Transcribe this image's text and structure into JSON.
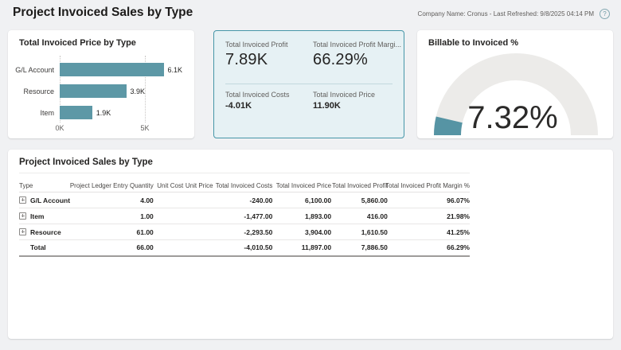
{
  "page": {
    "title": "Project Invoiced Sales by Type",
    "meta": "Company Name: Cronus - Last Refreshed: 9/8/2025 04:14 PM",
    "help_icon": "?"
  },
  "colors": {
    "accent_teal": "#5d98a6",
    "kpi_card_bg": "#e6f1f4",
    "kpi_card_border": "#4696a8",
    "gauge_track": "#ecebe9",
    "page_bg": "#f0f1f3"
  },
  "chart_data": [
    {
      "type": "bar",
      "title": "Total Invoiced Price by Type",
      "orientation": "horizontal",
      "categories": [
        "G/L Account",
        "Resource",
        "Item"
      ],
      "values": [
        6100,
        3900,
        1900
      ],
      "value_labels": [
        "6.1K",
        "3.9K",
        "1.9K"
      ],
      "xticks": [
        "0K",
        "5K"
      ],
      "axis_max": 5000,
      "xlabel": "",
      "ylabel": "",
      "grid": "dotted-vertical",
      "legend": "none"
    },
    {
      "type": "gauge",
      "title": "Billable to Invoiced %",
      "value": 7.32,
      "display": "7.32%",
      "range": [
        0,
        100
      ]
    }
  ],
  "kpi_card": {
    "primary": [
      {
        "label": "Total Invoiced Profit",
        "value": "7.89K"
      },
      {
        "label": "Total Invoiced Profit Margi...",
        "value": "66.29%"
      }
    ],
    "secondary": [
      {
        "label": "Total Invoiced Costs",
        "value": "-4.01K"
      },
      {
        "label": "Total Invoiced Price",
        "value": "11.90K"
      }
    ]
  },
  "table": {
    "title": "Project Invoiced Sales by Type",
    "columns": [
      "Type",
      "Project Ledger Entry Quantity",
      "Unit Cost",
      "Unit Price",
      "Total Invoiced Costs",
      "Total Invoiced Price",
      "Total Invoiced Profit",
      "Total Invoiced Profit Margin %"
    ],
    "rows": [
      {
        "type": "G/L Account",
        "expandable": true,
        "total": false,
        "cells": [
          "4.00",
          "",
          "",
          "-240.00",
          "6,100.00",
          "5,860.00",
          "96.07%"
        ]
      },
      {
        "type": "Item",
        "expandable": true,
        "total": false,
        "cells": [
          "1.00",
          "",
          "",
          "-1,477.00",
          "1,893.00",
          "416.00",
          "21.98%"
        ]
      },
      {
        "type": "Resource",
        "expandable": true,
        "total": false,
        "cells": [
          "61.00",
          "",
          "",
          "-2,293.50",
          "3,904.00",
          "1,610.50",
          "41.25%"
        ]
      },
      {
        "type": "Total",
        "expandable": false,
        "total": true,
        "cells": [
          "66.00",
          "",
          "",
          "-4,010.50",
          "11,897.00",
          "7,886.50",
          "66.29%"
        ]
      }
    ]
  }
}
